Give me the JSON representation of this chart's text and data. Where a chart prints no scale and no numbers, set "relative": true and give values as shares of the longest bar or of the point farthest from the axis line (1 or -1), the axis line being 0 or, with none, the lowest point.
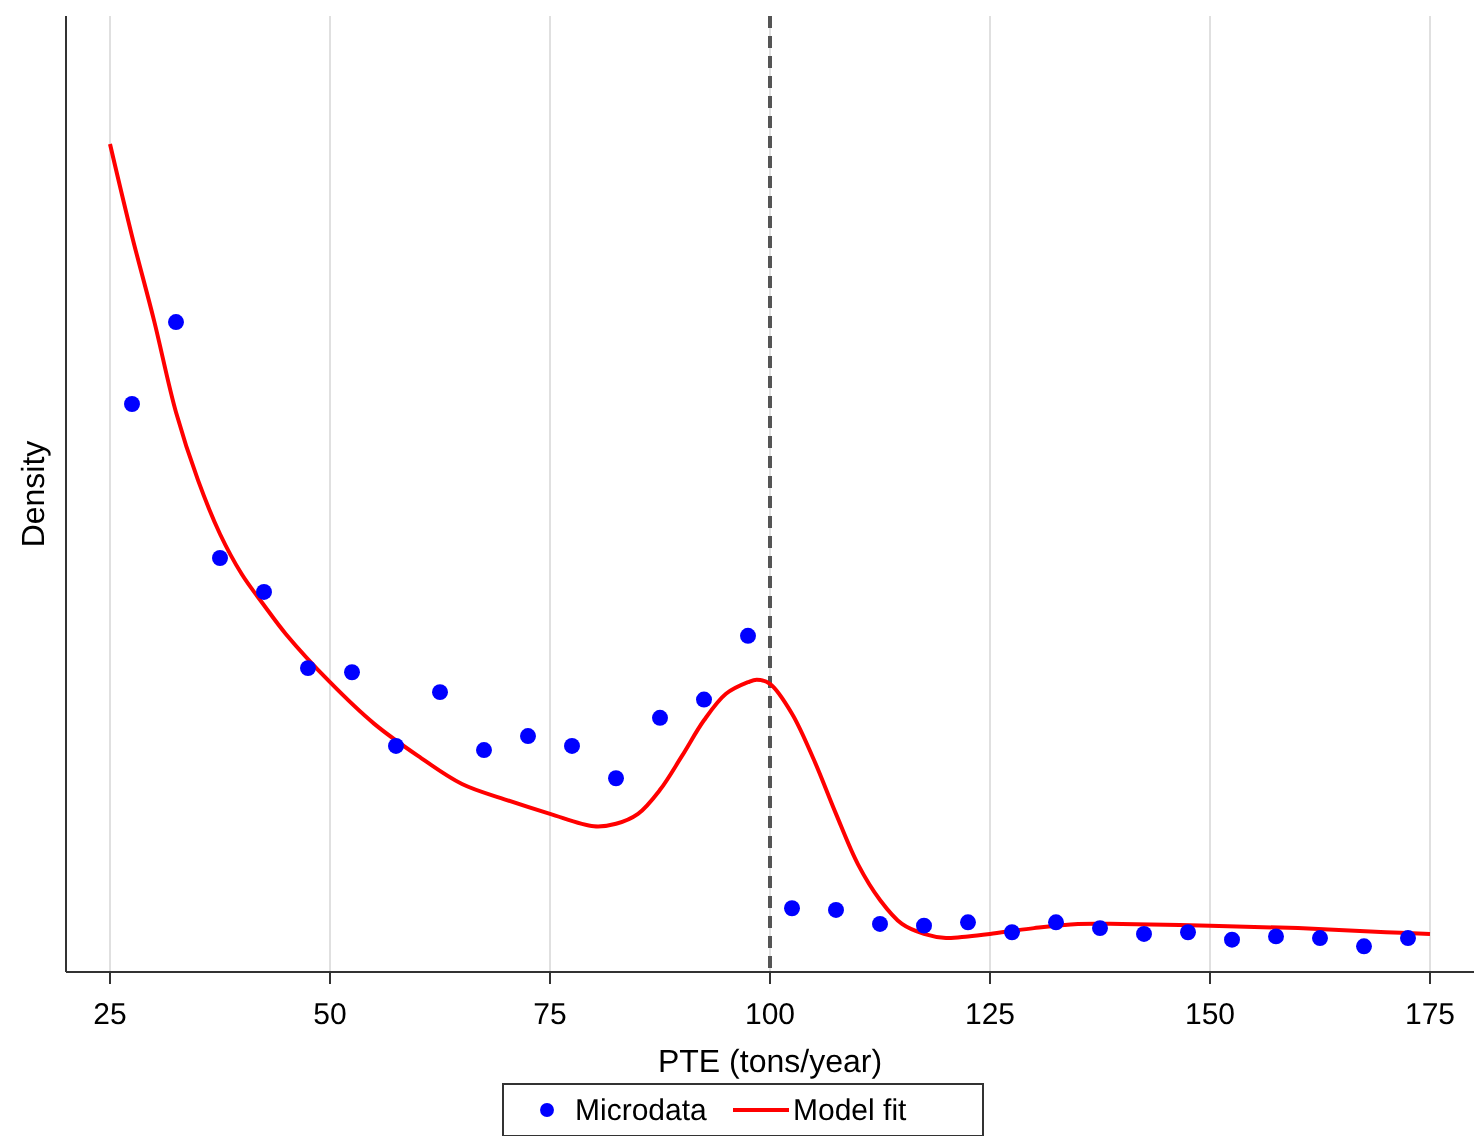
{
  "chart_data": {
    "type": "scatter",
    "xlabel": "PTE (tons/year)",
    "ylabel": "Density",
    "relative": true,
    "xlim": [
      20,
      180
    ],
    "xticks": [
      25,
      50,
      75,
      100,
      125,
      150,
      175
    ],
    "grid": "x",
    "legend": "bottom",
    "ref_lines": [
      {
        "axis": "x",
        "value": 100,
        "color": "#555555",
        "line_style": "dashed"
      }
    ],
    "series": [
      {
        "name": "Microdata",
        "color": "#0000ff",
        "marker": "circle",
        "x": [
          27.5,
          32.5,
          37.5,
          42.5,
          47.5,
          52.5,
          57.5,
          62.5,
          67.5,
          72.5,
          77.5,
          82.5,
          87.5,
          92.5,
          97.5,
          102.5,
          107.5,
          112.5,
          117.5,
          122.5,
          127.5,
          132.5,
          137.5,
          142.5,
          147.5,
          152.5,
          157.5,
          162.5,
          167.5,
          172.5
        ],
        "values": [
          0.686,
          0.785,
          0.5,
          0.459,
          0.367,
          0.362,
          0.273,
          0.338,
          0.268,
          0.285,
          0.273,
          0.234,
          0.307,
          0.329,
          0.406,
          0.077,
          0.075,
          0.058,
          0.056,
          0.06,
          0.048,
          0.06,
          0.053,
          0.046,
          0.048,
          0.039,
          0.043,
          0.041,
          0.031,
          0.041
        ]
      },
      {
        "name": "Model fit",
        "type": "line",
        "color": "#ff0000",
        "line_style": "solid",
        "x": [
          25,
          27.5,
          30,
          32.5,
          35,
          37.5,
          40,
          42.5,
          45,
          50,
          55,
          60,
          65,
          70,
          75,
          80,
          82.5,
          85,
          87.5,
          90,
          92.5,
          95,
          97.5,
          98.5,
          100,
          102.5,
          105,
          107.5,
          110,
          112.5,
          115,
          117.5,
          120,
          122.5,
          125,
          130,
          135,
          140,
          150,
          160,
          170,
          175
        ],
        "values": [
          1.0,
          0.889,
          0.787,
          0.676,
          0.594,
          0.529,
          0.48,
          0.443,
          0.408,
          0.35,
          0.3,
          0.261,
          0.227,
          0.208,
          0.191,
          0.176,
          0.179,
          0.191,
          0.22,
          0.261,
          0.304,
          0.336,
          0.35,
          0.353,
          0.348,
          0.312,
          0.256,
          0.191,
          0.13,
          0.087,
          0.058,
          0.046,
          0.041,
          0.043,
          0.046,
          0.053,
          0.058,
          0.058,
          0.056,
          0.053,
          0.048,
          0.046
        ]
      }
    ]
  }
}
